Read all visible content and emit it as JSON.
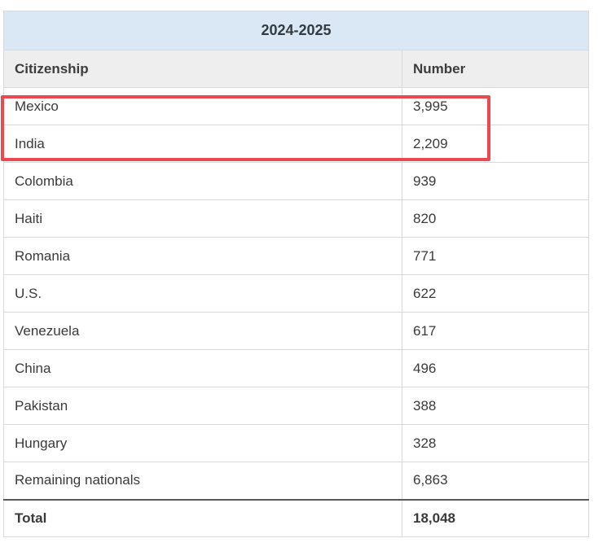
{
  "title": "2024-2025",
  "columns": {
    "citizenship": "Citizenship",
    "number": "Number"
  },
  "rows": [
    {
      "citizenship": "Mexico",
      "number": "3,995"
    },
    {
      "citizenship": "India",
      "number": "2,209"
    },
    {
      "citizenship": "Colombia",
      "number": "939"
    },
    {
      "citizenship": "Haiti",
      "number": "820"
    },
    {
      "citizenship": "Romania",
      "number": "771"
    },
    {
      "citizenship": "U.S.",
      "number": "622"
    },
    {
      "citizenship": "Venezuela",
      "number": "617"
    },
    {
      "citizenship": "China",
      "number": "496"
    },
    {
      "citizenship": "Pakistan",
      "number": "388"
    },
    {
      "citizenship": "Hungary",
      "number": "328"
    },
    {
      "citizenship": "Remaining nationals",
      "number": "6,863"
    }
  ],
  "total": {
    "label": "Total",
    "number": "18,048"
  },
  "annotation": {
    "type": "highlight-box",
    "highlighted_rows": [
      "Mexico",
      "India"
    ]
  },
  "colors": {
    "title_bg": "#d9e8f4",
    "header_bg": "#eeeeee",
    "row_border": "#d9d9d9",
    "total_top_border": "#59595b",
    "text": "#3a3a3a",
    "annotation": "#e9494f"
  }
}
